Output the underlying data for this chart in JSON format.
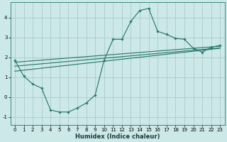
{
  "title": "",
  "xlabel": "Humidex (Indice chaleur)",
  "bg_color": "#cde8e8",
  "grid_color": "#a8cccc",
  "line_color": "#2a7a6f",
  "x_data": [
    0,
    1,
    2,
    3,
    4,
    5,
    6,
    7,
    8,
    9,
    10,
    11,
    12,
    13,
    14,
    15,
    16,
    17,
    18,
    19,
    20,
    21,
    22,
    23
  ],
  "y_main": [
    1.85,
    1.05,
    0.65,
    0.45,
    -0.65,
    -0.75,
    -0.75,
    -0.55,
    -0.3,
    0.1,
    1.85,
    2.9,
    2.9,
    3.8,
    4.35,
    4.45,
    3.3,
    3.15,
    2.95,
    2.9,
    2.45,
    2.25,
    2.5,
    2.6
  ],
  "y_line1": [
    1.3,
    1.35,
    1.4,
    1.45,
    1.5,
    1.55,
    1.6,
    1.65,
    1.7,
    1.75,
    1.8,
    1.85,
    1.9,
    1.95,
    2.0,
    2.05,
    2.1,
    2.15,
    2.2,
    2.25,
    2.3,
    2.35,
    2.4,
    2.45
  ],
  "y_line2": [
    1.55,
    1.59,
    1.63,
    1.67,
    1.71,
    1.75,
    1.79,
    1.83,
    1.87,
    1.91,
    1.95,
    1.99,
    2.03,
    2.07,
    2.11,
    2.15,
    2.19,
    2.23,
    2.27,
    2.31,
    2.35,
    2.39,
    2.43,
    2.47
  ],
  "y_line3": [
    1.75,
    1.785,
    1.82,
    1.855,
    1.89,
    1.925,
    1.96,
    1.995,
    2.03,
    2.065,
    2.1,
    2.135,
    2.17,
    2.205,
    2.24,
    2.275,
    2.31,
    2.345,
    2.38,
    2.415,
    2.45,
    2.485,
    2.52,
    2.555
  ],
  "xlim": [
    -0.5,
    23.5
  ],
  "ylim": [
    -1.4,
    4.75
  ],
  "yticks": [
    -1,
    0,
    1,
    2,
    3,
    4
  ],
  "xticks": [
    0,
    1,
    2,
    3,
    4,
    5,
    6,
    7,
    8,
    9,
    10,
    11,
    12,
    13,
    14,
    15,
    16,
    17,
    18,
    19,
    20,
    21,
    22,
    23
  ],
  "xlabel_fontsize": 6.0,
  "tick_fontsize": 5.0
}
